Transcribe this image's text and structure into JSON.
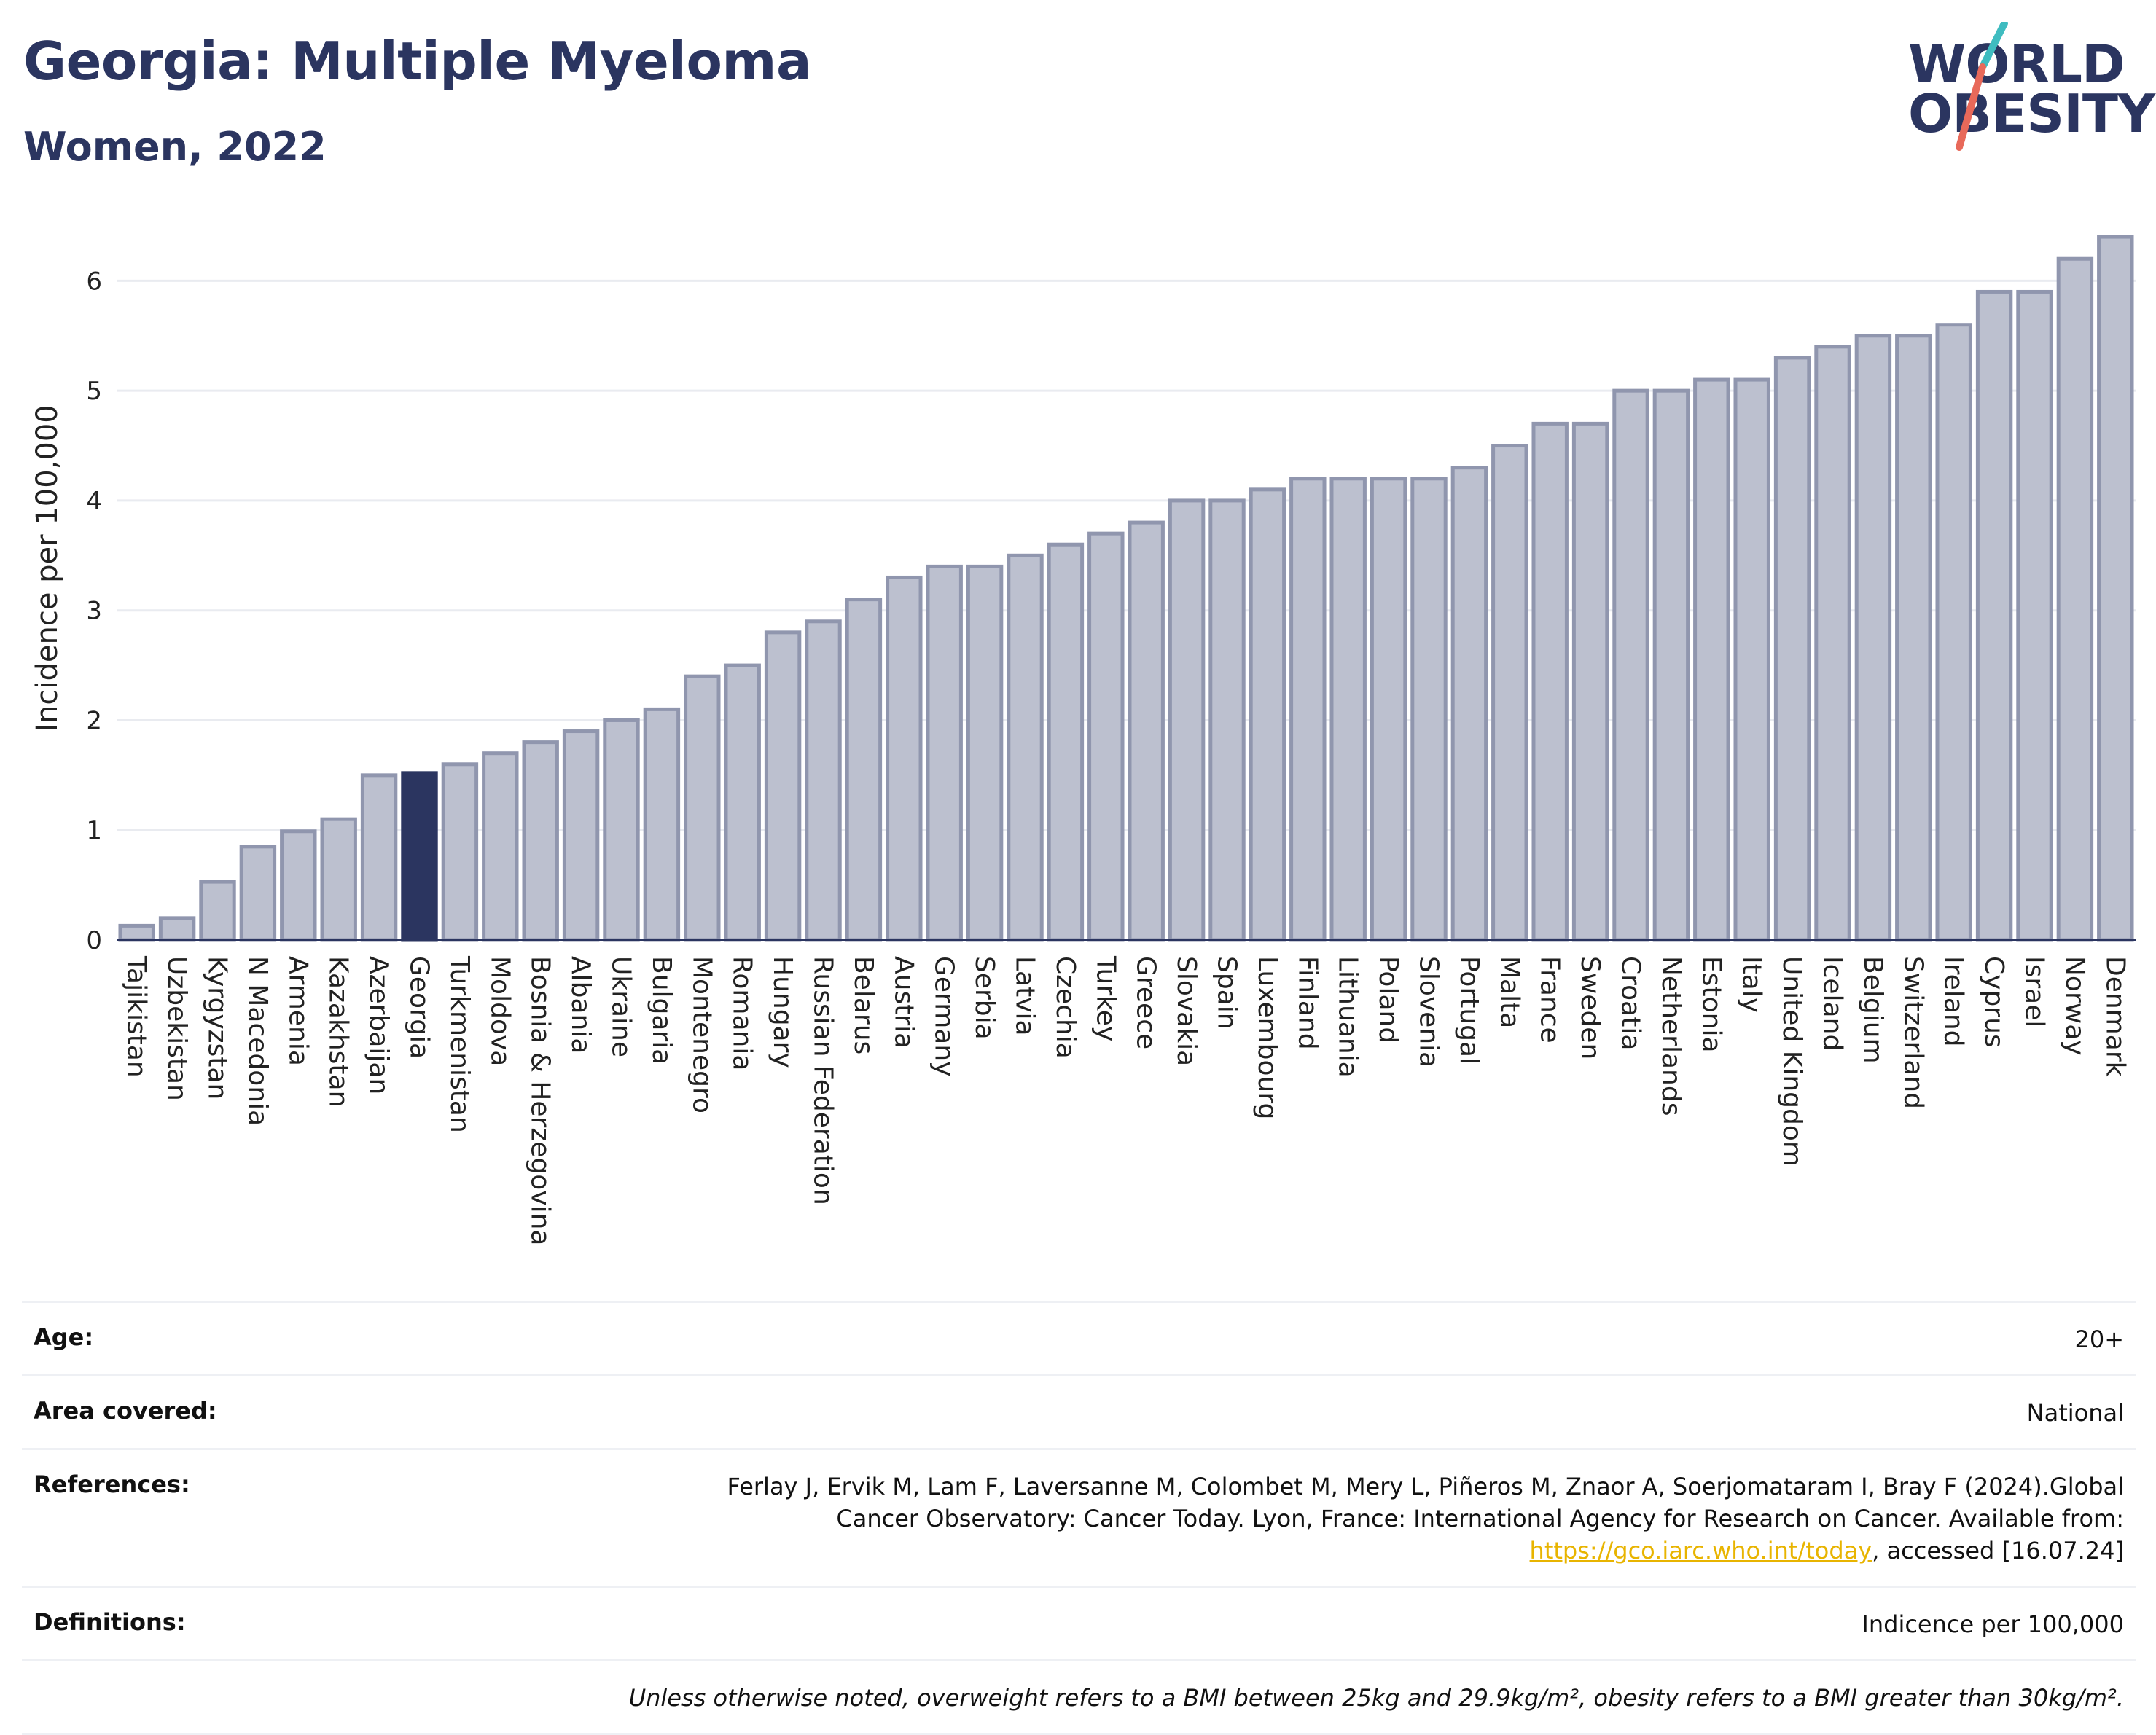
{
  "header": {
    "title": "Georgia: Multiple Myeloma",
    "subtitle": "Women, 2022"
  },
  "logo": {
    "line1": "WORLD",
    "line2": "OBESITY",
    "colors": {
      "text": "#2b3560",
      "slash_top": "#3fbcc0",
      "slash_bottom": "#e8695a"
    }
  },
  "chart_data": {
    "type": "bar",
    "ylabel": "Incidence per 100,000",
    "ylim": [
      0,
      6.5
    ],
    "yticks": [
      0,
      1,
      2,
      3,
      4,
      5,
      6
    ],
    "grid": true,
    "highlight": "Georgia",
    "colors": {
      "bar": "#bcc0cf",
      "bar_edge": "#9096ae",
      "highlight": "#2b3560",
      "axis": "#2b3560",
      "grid": "#e9ebf0"
    },
    "categories": [
      "Tajikistan",
      "Uzbekistan",
      "Kyrgyzstan",
      "N Macedonia",
      "Armenia",
      "Kazakhstan",
      "Azerbaijan",
      "Georgia",
      "Turkmenistan",
      "Moldova",
      "Bosnia & Herzegovina",
      "Albania",
      "Ukraine",
      "Bulgaria",
      "Montenegro",
      "Romania",
      "Hungary",
      "Russian Federation",
      "Belarus",
      "Austria",
      "Germany",
      "Serbia",
      "Latvia",
      "Czechia",
      "Turkey",
      "Greece",
      "Slovakia",
      "Spain",
      "Luxembourg",
      "Finland",
      "Lithuania",
      "Poland",
      "Slovenia",
      "Portugal",
      "Malta",
      "France",
      "Sweden",
      "Croatia",
      "Netherlands",
      "Estonia",
      "Italy",
      "United Kingdom",
      "Iceland",
      "Belgium",
      "Switzerland",
      "Ireland",
      "Cyprus",
      "Israel",
      "Norway",
      "Denmark"
    ],
    "values": [
      0.13,
      0.2,
      0.53,
      0.85,
      0.99,
      1.1,
      1.5,
      1.52,
      1.6,
      1.7,
      1.8,
      1.9,
      2.0,
      2.1,
      2.4,
      2.5,
      2.8,
      2.9,
      3.1,
      3.3,
      3.4,
      3.4,
      3.5,
      3.6,
      3.7,
      3.8,
      4.0,
      4.0,
      4.1,
      4.2,
      4.2,
      4.2,
      4.2,
      4.3,
      4.5,
      4.7,
      4.7,
      5.0,
      5.0,
      5.1,
      5.1,
      5.3,
      5.4,
      5.5,
      5.5,
      5.6,
      5.9,
      5.9,
      6.2,
      6.4
    ]
  },
  "meta": {
    "age": {
      "label": "Age:",
      "value": "20+"
    },
    "area": {
      "label": "Area covered:",
      "value": "National"
    },
    "references": {
      "label": "References:",
      "text_before": "Ferlay J, Ervik M, Lam F, Laversanne M, Colombet M, Mery L, Piñeros M, Znaor A, Soerjomataram I, Bray F (2024).Global Cancer Observatory: Cancer Today. Lyon, France: International Agency for Research on Cancer. Available from: ",
      "link": "https://gco.iarc.who.int/today",
      "text_after": ", accessed [16.07.24]"
    },
    "definitions": {
      "label": "Definitions:",
      "value": "Indicence per 100,000"
    },
    "note": "Unless otherwise noted, overweight refers to a BMI between 25kg and 29.9kg/m², obesity refers to a BMI greater than 30kg/m²."
  }
}
